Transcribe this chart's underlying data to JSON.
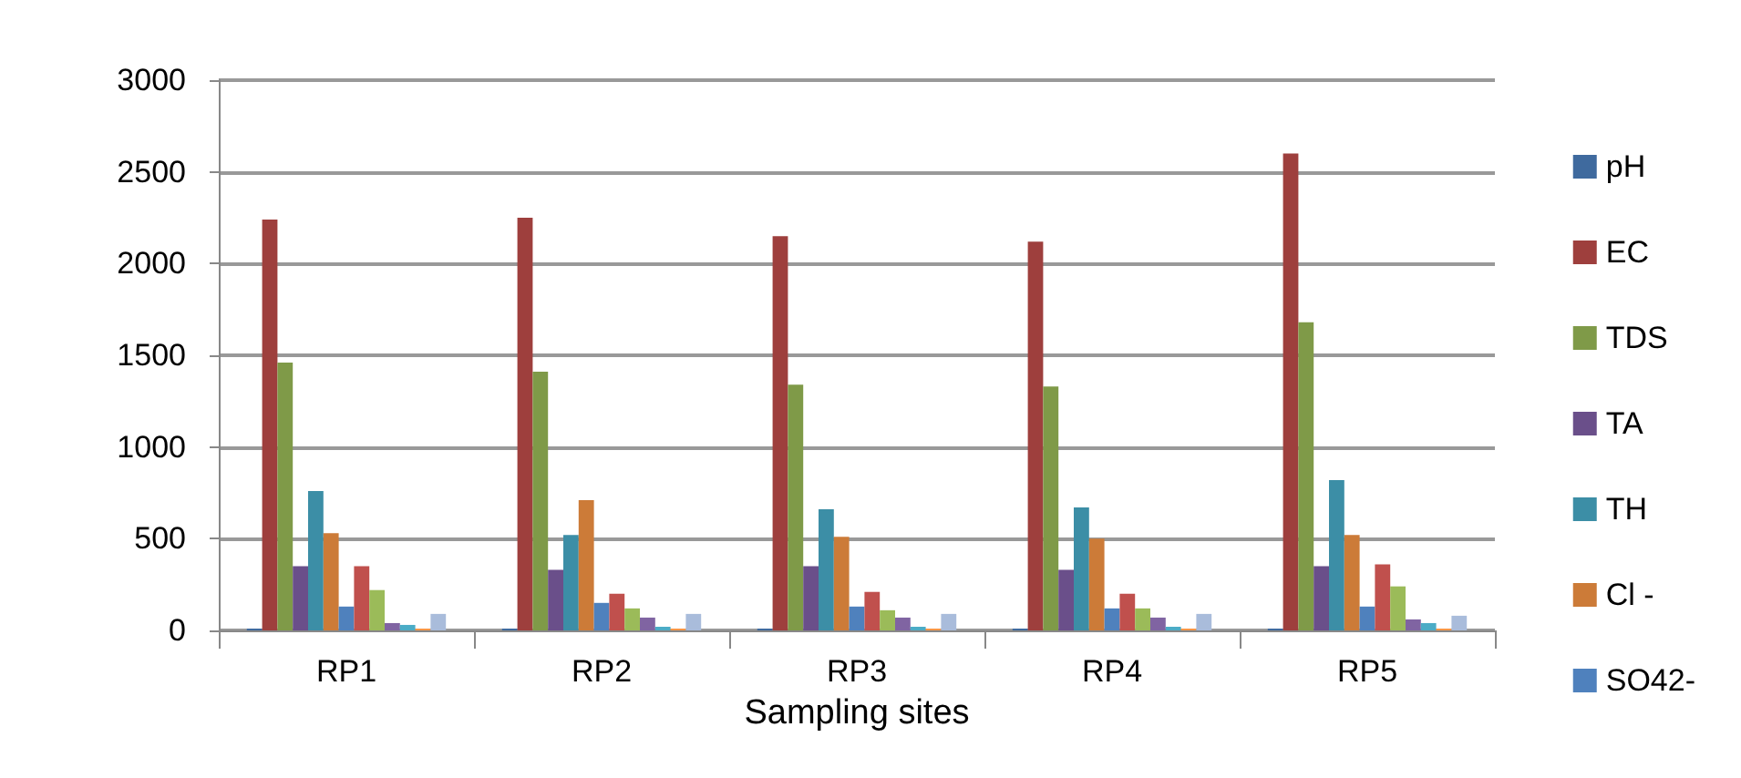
{
  "chart_data": {
    "type": "bar",
    "xlabel": "Sampling sites",
    "categories": [
      "RP1",
      "RP2",
      "RP3",
      "RP4",
      "RP5"
    ],
    "ylim": [
      0,
      3000
    ],
    "yticks": [
      0,
      500,
      1000,
      1500,
      2000,
      2500,
      3000
    ],
    "grid": "y",
    "legend": "right",
    "series": [
      {
        "name": "pH",
        "color": "#3f6a9e",
        "values": [
          10,
          10,
          10,
          10,
          10
        ]
      },
      {
        "name": "EC",
        "color": "#9e3f3d",
        "values": [
          2240,
          2250,
          2150,
          2120,
          2600
        ]
      },
      {
        "name": "TDS",
        "color": "#7f9a48",
        "values": [
          1460,
          1410,
          1340,
          1330,
          1680
        ]
      },
      {
        "name": "TA",
        "color": "#6a4f8a",
        "values": [
          350,
          330,
          350,
          330,
          350
        ]
      },
      {
        "name": "TH",
        "color": "#3c8ea6",
        "values": [
          760,
          520,
          660,
          670,
          820
        ]
      },
      {
        "name": "Cl -",
        "color": "#cc7b38",
        "values": [
          530,
          710,
          510,
          500,
          520
        ]
      },
      {
        "name": "SO42-",
        "color": "#4f81bd",
        "values": [
          130,
          150,
          130,
          120,
          130
        ]
      },
      {
        "color": "#c0504d",
        "values": [
          350,
          200,
          210,
          200,
          360
        ]
      },
      {
        "color": "#9bbb59",
        "values": [
          220,
          120,
          110,
          120,
          240
        ]
      },
      {
        "color": "#8064a2",
        "values": [
          40,
          70,
          70,
          70,
          60
        ]
      },
      {
        "color": "#4bacc6",
        "values": [
          30,
          20,
          20,
          20,
          40
        ]
      },
      {
        "color": "#f79646",
        "values": [
          10,
          10,
          10,
          10,
          10
        ]
      },
      {
        "color": "#a9bcdb",
        "values": [
          90,
          90,
          90,
          90,
          80
        ]
      }
    ]
  }
}
